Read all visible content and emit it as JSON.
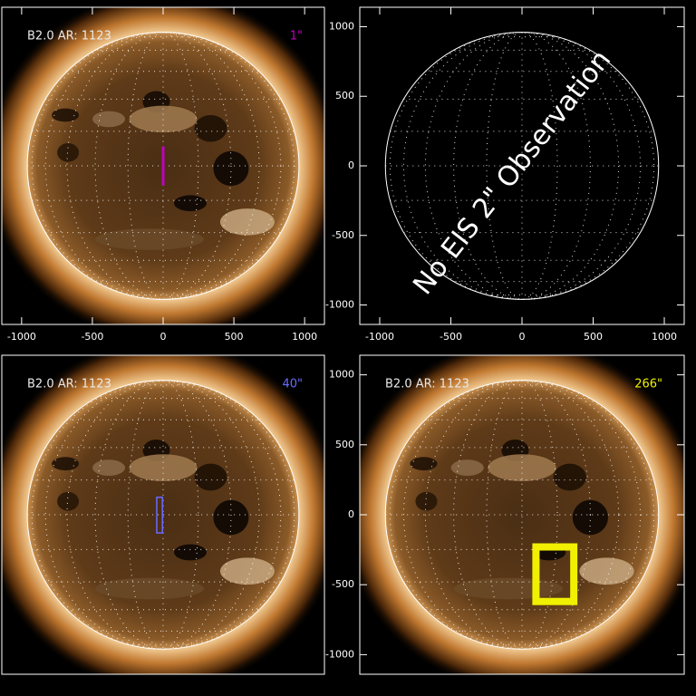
{
  "chart_data": [
    {
      "type": "solar-image",
      "title": "B2.0 AR: 1123",
      "annotation": "1\"",
      "color": "#c000c0",
      "line_width": 3,
      "xlim": [
        -1140,
        1140
      ],
      "ylim": [
        -1140,
        1140
      ],
      "disk_radius": 960,
      "xticks": [
        -1000,
        -500,
        0,
        500,
        1000
      ],
      "box": {
        "x": [
          0,
          0
        ],
        "y": [
          -130,
          130
        ]
      }
    },
    {
      "type": "blank-disk",
      "annotation": "No EIS 2\" Observation",
      "xlim": [
        -1140,
        1140
      ],
      "ylim": [
        -1140,
        1140
      ],
      "disk_radius": 960,
      "xticks": [
        -1000,
        -500,
        0,
        500,
        1000
      ],
      "yticks": [
        -1000,
        -500,
        0,
        500,
        1000
      ]
    },
    {
      "type": "solar-image",
      "title": "B2.0 AR: 1123",
      "annotation": "40\"",
      "color": "#6a6aff",
      "line_width": 1.5,
      "xlim": [
        -1140,
        1140
      ],
      "ylim": [
        -1140,
        1140
      ],
      "disk_radius": 960,
      "box": {
        "x": [
          -45,
          -5
        ],
        "y": [
          -130,
          125
        ]
      }
    },
    {
      "type": "solar-image",
      "title": "B2.0 AR: 1123",
      "annotation": "266\"",
      "color": "#f0f000",
      "line_width": 8,
      "xlim": [
        -1140,
        1140
      ],
      "ylim": [
        -1140,
        1140
      ],
      "disk_radius": 960,
      "yticks": [
        -1000,
        -500,
        0,
        500,
        1000
      ],
      "box": {
        "x": [
          98,
          364
        ],
        "y": [
          -620,
          -230
        ]
      }
    }
  ]
}
